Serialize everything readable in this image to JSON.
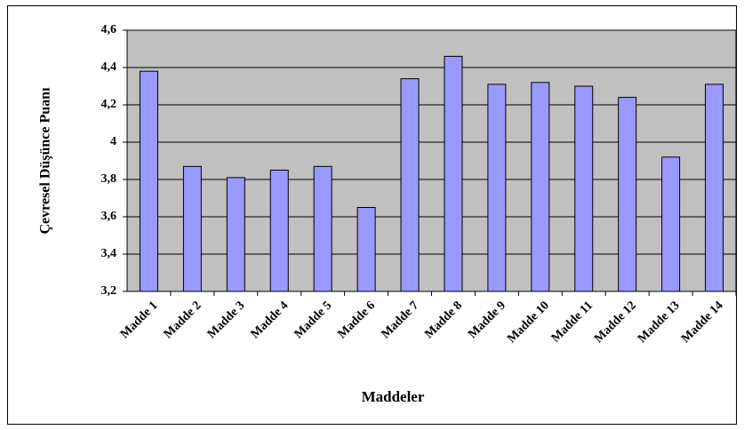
{
  "chart_data": {
    "type": "bar",
    "xlabel": "Maddeler",
    "ylabel": "Çevresel Düşünce Puanı",
    "categories": [
      "Madde 1",
      "Madde 2",
      "Madde 3",
      "Madde 4",
      "Madde 5",
      "Madde 6",
      "Madde 7",
      "Madde 8",
      "Madde 9",
      "Madde 10",
      "Madde 11",
      "Madde 12",
      "Madde 13",
      "Madde 14"
    ],
    "values": [
      4.38,
      3.87,
      3.81,
      3.85,
      3.87,
      3.65,
      4.34,
      4.46,
      4.31,
      4.32,
      4.3,
      4.24,
      3.92,
      4.31
    ],
    "color": "#9999ff",
    "ylim": [
      3.2,
      4.6
    ],
    "yticks": [
      {
        "value": 3.2,
        "label": "3,2"
      },
      {
        "value": 3.4,
        "label": "3,4"
      },
      {
        "value": 3.6,
        "label": "3,6"
      },
      {
        "value": 3.8,
        "label": "3,8"
      },
      4,
      {
        "value": 4.2,
        "label": "4,2"
      },
      {
        "value": 4.4,
        "label": "4,4"
      },
      {
        "value": 4.6,
        "label": "4,6"
      }
    ],
    "grid": true
  }
}
